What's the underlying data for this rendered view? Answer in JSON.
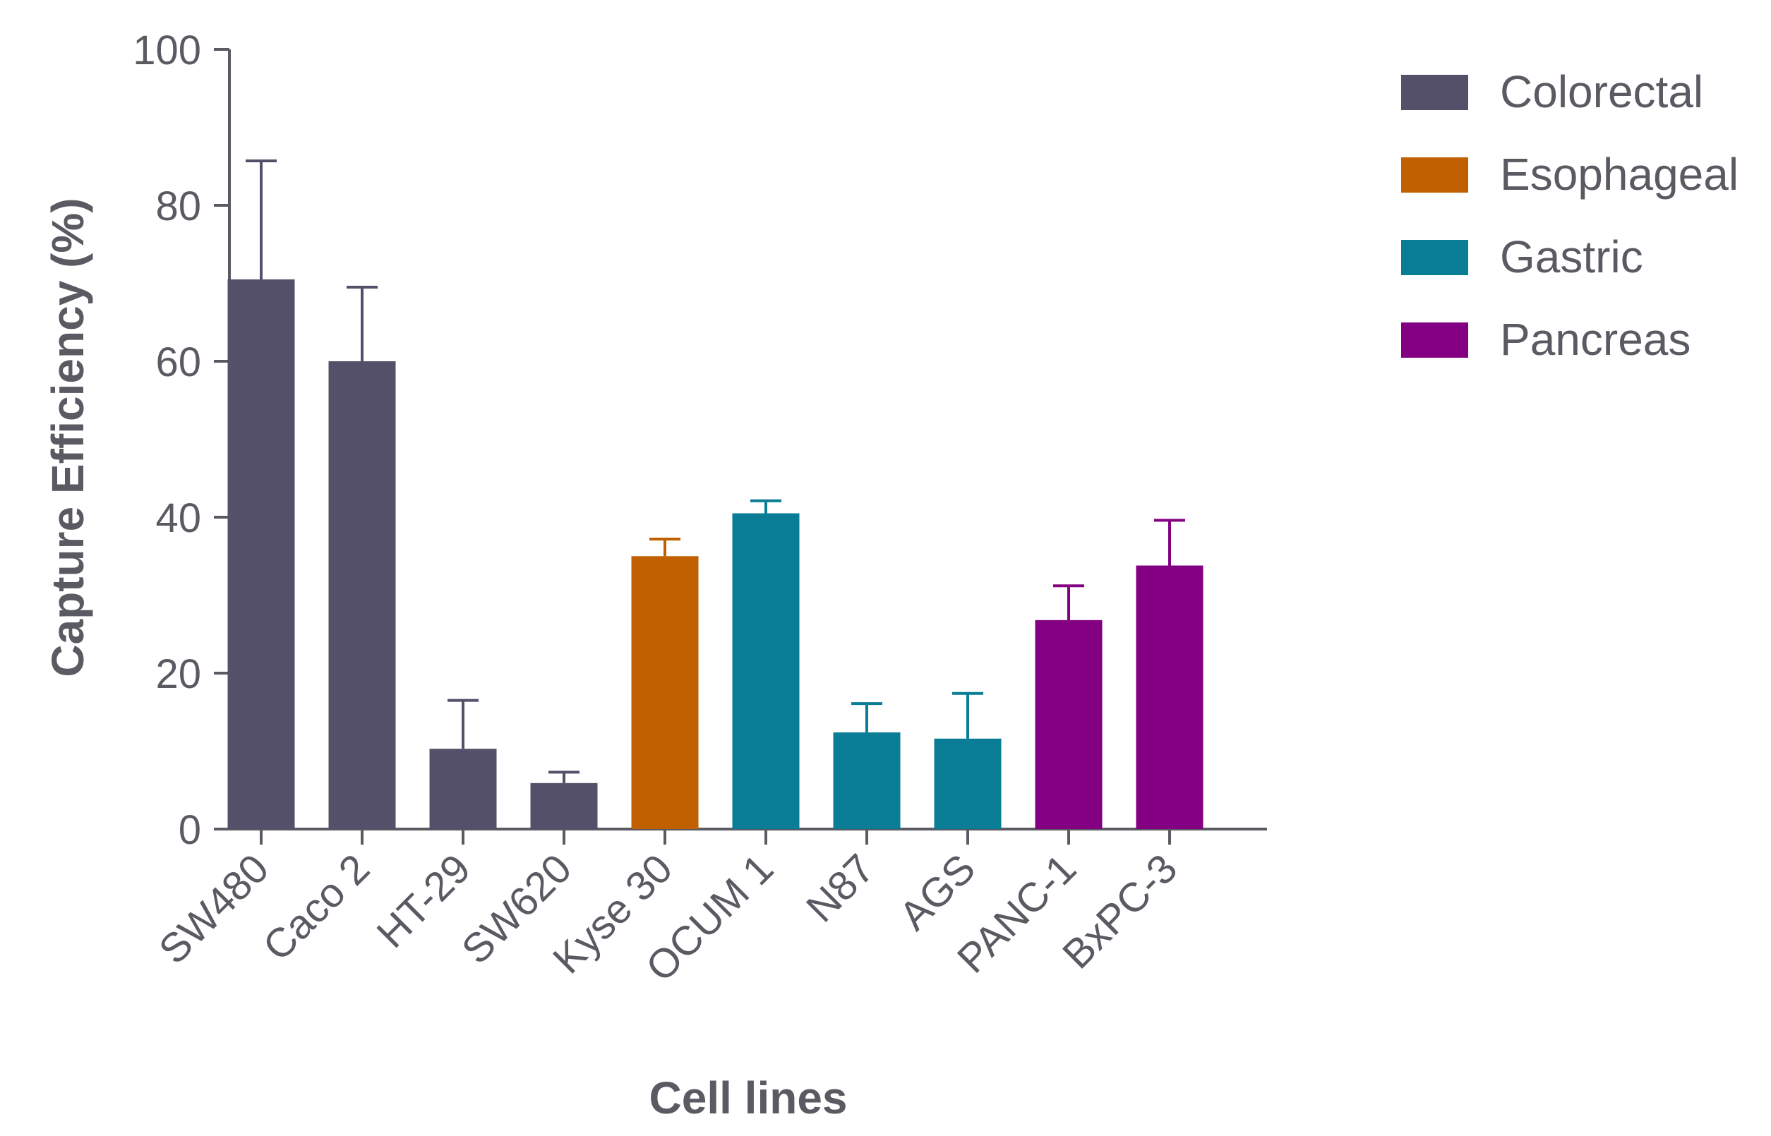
{
  "chart_data": {
    "type": "bar",
    "title": "",
    "xlabel": "Cell lines",
    "ylabel": "Capture Efficiency (%)",
    "ylim": [
      0,
      100
    ],
    "yticks": [
      0,
      20,
      40,
      60,
      80,
      100
    ],
    "grid": false,
    "legend_position": "top-right",
    "categories": [
      "SW480",
      "Caco 2",
      "HT-29",
      "SW620",
      "Kyse 30",
      "OCUM 1",
      "N87",
      "AGS",
      "PANC-1",
      "BxPC-3"
    ],
    "values": [
      70.5,
      60,
      10.3,
      5.9,
      35,
      40.5,
      12.4,
      11.6,
      26.8,
      33.8
    ],
    "errors": [
      15.2,
      9.5,
      6.2,
      1.4,
      2.2,
      1.6,
      3.7,
      5.8,
      4.4,
      5.8
    ],
    "groups": [
      "Colorectal",
      "Colorectal",
      "Colorectal",
      "Colorectal",
      "Esophageal",
      "Gastric",
      "Gastric",
      "Gastric",
      "Pancreas",
      "Pancreas"
    ],
    "legend": [
      {
        "name": "Colorectal",
        "color": "#545069"
      },
      {
        "name": "Esophageal",
        "color": "#c06000"
      },
      {
        "name": "Gastric",
        "color": "#0a7d96"
      },
      {
        "name": "Pancreas",
        "color": "#830082"
      }
    ],
    "axis_color": "#5a5a63"
  }
}
